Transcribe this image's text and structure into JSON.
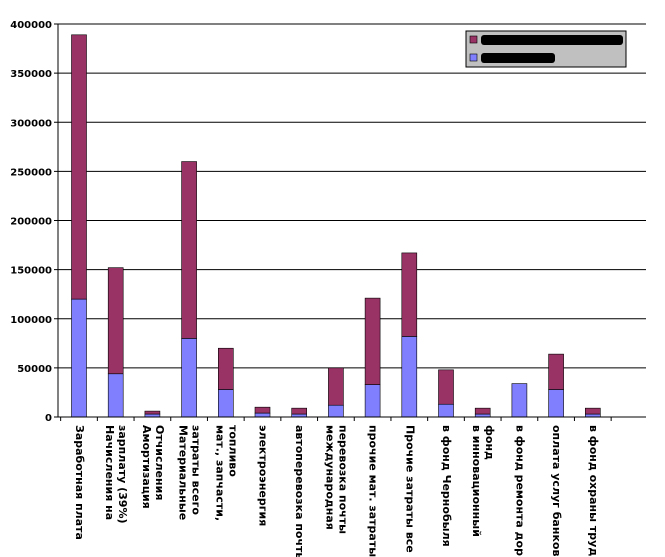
{
  "chart_data": {
    "type": "bar",
    "stacked": true,
    "title": "",
    "xlabel": "",
    "ylabel": "",
    "ylim": [
      0,
      400000
    ],
    "yticks": [
      0,
      50000,
      100000,
      150000,
      200000,
      250000,
      300000,
      350000,
      400000
    ],
    "grid": true,
    "legend_position": "top-right",
    "legend_labels_visible": false,
    "categories": [
      [
        "Заработная плата"
      ],
      [
        "Начисления на",
        "зарплату (39%)"
      ],
      [
        "Амортизация",
        "Отчисления"
      ],
      [
        "Материальные",
        "затраты всего"
      ],
      [
        "мат., запчасти,",
        "топливо"
      ],
      [
        "электроэнергия"
      ],
      [
        "автоперевозка почты"
      ],
      [
        "международная",
        "перевозка почты"
      ],
      [
        "прочие мат. затраты"
      ],
      [
        "Прочие затраты  все"
      ],
      [
        "в фонд Чернобыля"
      ],
      [
        "в инновационный",
        "фонд"
      ],
      [
        "в фонд ремонта дор"
      ],
      [
        "оплата услуг банков"
      ],
      [
        "в фонд охраны труд"
      ]
    ],
    "series": [
      {
        "color": "#8080ff",
        "values": [
          120000,
          44000,
          3000,
          80000,
          28000,
          4000,
          3000,
          12000,
          33000,
          82000,
          13000,
          3000,
          34000,
          28000,
          3000
        ]
      },
      {
        "color": "#993366",
        "values": [
          269000,
          108000,
          3000,
          180000,
          42000,
          6000,
          6000,
          38000,
          88000,
          85000,
          35000,
          6000,
          0,
          36000,
          6000
        ]
      }
    ],
    "colors": {
      "grid": "#000000",
      "axis": "#000000",
      "legend_bg": "#c0c0c0",
      "label_bar": "#000000"
    }
  }
}
